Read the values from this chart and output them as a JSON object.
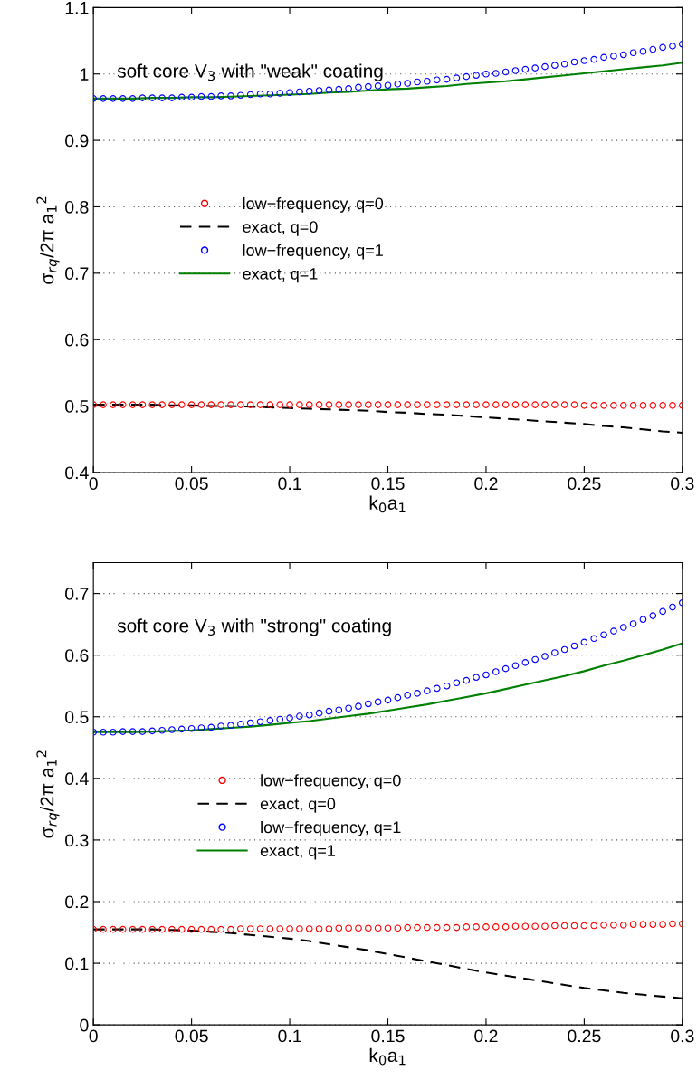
{
  "chart_data": [
    {
      "type": "scatter",
      "xlabel": "k$_{0}$a$_{1}$",
      "ylabel": "σ$_{r}$$_{q}$/2π a$_{1}$$^{2}$",
      "annotations": [
        "soft core V$_{3}$ with \"weak\" coating"
      ],
      "xlim": [
        0,
        0.3
      ],
      "ylim": [
        0.4,
        1.1
      ],
      "xticks": [
        0,
        0.05,
        0.1,
        0.15,
        0.2,
        0.25,
        0.3
      ],
      "yticks": [
        0.4,
        0.5,
        0.6,
        0.7,
        0.8,
        0.9,
        1,
        1.1
      ],
      "grid": "y",
      "legend": "center",
      "series": [
        {
          "name": "low−frequency, q=0",
          "type": "scatter",
          "marker": "circle",
          "color": "#ff0000",
          "x": [
            0,
            0.005,
            0.01,
            0.015,
            0.02,
            0.025,
            0.03,
            0.035,
            0.04,
            0.045,
            0.05,
            0.055,
            0.06,
            0.065,
            0.07,
            0.075,
            0.08,
            0.085,
            0.09,
            0.095,
            0.1,
            0.105,
            0.11,
            0.115,
            0.12,
            0.125,
            0.13,
            0.135,
            0.14,
            0.145,
            0.15,
            0.155,
            0.16,
            0.165,
            0.17,
            0.175,
            0.18,
            0.185,
            0.19,
            0.195,
            0.2,
            0.205,
            0.21,
            0.215,
            0.22,
            0.225,
            0.23,
            0.235,
            0.24,
            0.245,
            0.25,
            0.255,
            0.26,
            0.265,
            0.27,
            0.275,
            0.28,
            0.285,
            0.29,
            0.295,
            0.3
          ],
          "values": [
            0.502,
            0.502,
            0.502,
            0.502,
            0.502,
            0.502,
            0.502,
            0.502,
            0.502,
            0.502,
            0.502,
            0.502,
            0.502,
            0.502,
            0.502,
            0.502,
            0.502,
            0.502,
            0.502,
            0.502,
            0.502,
            0.502,
            0.502,
            0.502,
            0.502,
            0.502,
            0.502,
            0.502,
            0.502,
            0.502,
            0.502,
            0.502,
            0.502,
            0.502,
            0.502,
            0.502,
            0.502,
            0.502,
            0.502,
            0.502,
            0.502,
            0.502,
            0.502,
            0.502,
            0.502,
            0.502,
            0.502,
            0.502,
            0.502,
            0.502,
            0.501,
            0.501,
            0.501,
            0.501,
            0.501,
            0.501,
            0.501,
            0.501,
            0.501,
            0.501,
            0.501
          ]
        },
        {
          "name": "exact, q=0",
          "type": "line",
          "line_style": "dashed",
          "color": "#000000",
          "x": [
            0,
            0.01,
            0.02,
            0.03,
            0.04,
            0.05,
            0.06,
            0.07,
            0.08,
            0.09,
            0.1,
            0.11,
            0.12,
            0.13,
            0.14,
            0.15,
            0.16,
            0.17,
            0.18,
            0.19,
            0.2,
            0.21,
            0.22,
            0.23,
            0.24,
            0.25,
            0.26,
            0.27,
            0.28,
            0.29,
            0.3
          ],
          "values": [
            0.502,
            0.502,
            0.502,
            0.502,
            0.501,
            0.501,
            0.5,
            0.5,
            0.499,
            0.498,
            0.497,
            0.496,
            0.495,
            0.494,
            0.493,
            0.491,
            0.49,
            0.488,
            0.487,
            0.485,
            0.483,
            0.481,
            0.479,
            0.477,
            0.475,
            0.473,
            0.47,
            0.468,
            0.465,
            0.462,
            0.46
          ]
        },
        {
          "name": "low−frequency, q=1",
          "type": "scatter",
          "marker": "circle",
          "color": "#0000ff",
          "x": [
            0,
            0.005,
            0.01,
            0.015,
            0.02,
            0.025,
            0.03,
            0.035,
            0.04,
            0.045,
            0.05,
            0.055,
            0.06,
            0.065,
            0.07,
            0.075,
            0.08,
            0.085,
            0.09,
            0.095,
            0.1,
            0.105,
            0.11,
            0.115,
            0.12,
            0.125,
            0.13,
            0.135,
            0.14,
            0.145,
            0.15,
            0.155,
            0.16,
            0.165,
            0.17,
            0.175,
            0.18,
            0.185,
            0.19,
            0.195,
            0.2,
            0.205,
            0.21,
            0.215,
            0.22,
            0.225,
            0.23,
            0.235,
            0.24,
            0.245,
            0.25,
            0.255,
            0.26,
            0.265,
            0.27,
            0.275,
            0.28,
            0.285,
            0.29,
            0.295,
            0.3
          ],
          "values": [
            0.963,
            0.963,
            0.963,
            0.963,
            0.963,
            0.964,
            0.964,
            0.964,
            0.964,
            0.965,
            0.965,
            0.966,
            0.966,
            0.967,
            0.967,
            0.968,
            0.969,
            0.97,
            0.97,
            0.971,
            0.972,
            0.973,
            0.974,
            0.975,
            0.976,
            0.977,
            0.978,
            0.98,
            0.981,
            0.982,
            0.983,
            0.985,
            0.986,
            0.988,
            0.989,
            0.991,
            0.992,
            0.994,
            0.996,
            0.998,
            1.0,
            1.001,
            1.003,
            1.005,
            1.007,
            1.009,
            1.011,
            1.013,
            1.015,
            1.018,
            1.02,
            1.022,
            1.025,
            1.027,
            1.029,
            1.032,
            1.034,
            1.037,
            1.04,
            1.042,
            1.045
          ]
        },
        {
          "name": "exact, q=1",
          "type": "line",
          "line_style": "solid",
          "color": "#008000",
          "x": [
            0,
            0.01,
            0.02,
            0.03,
            0.04,
            0.05,
            0.06,
            0.07,
            0.08,
            0.09,
            0.1,
            0.11,
            0.12,
            0.13,
            0.14,
            0.15,
            0.16,
            0.17,
            0.18,
            0.19,
            0.2,
            0.21,
            0.22,
            0.23,
            0.24,
            0.25,
            0.26,
            0.27,
            0.28,
            0.29,
            0.3
          ],
          "values": [
            0.963,
            0.963,
            0.963,
            0.964,
            0.964,
            0.965,
            0.965,
            0.966,
            0.967,
            0.968,
            0.969,
            0.97,
            0.972,
            0.973,
            0.975,
            0.977,
            0.978,
            0.98,
            0.982,
            0.985,
            0.987,
            0.989,
            0.992,
            0.995,
            0.998,
            1.001,
            1.004,
            1.007,
            1.01,
            1.013,
            1.017
          ]
        }
      ]
    },
    {
      "type": "scatter",
      "xlabel": "k$_{0}$a$_{1}$",
      "ylabel": "σ$_{r}$$_{q}$/2π a$_{1}$$^{2}$",
      "annotations": [
        "soft core V$_{3}$ with \"strong\" coating"
      ],
      "xlim": [
        0,
        0.3
      ],
      "ylim": [
        0,
        0.75
      ],
      "xticks": [
        0,
        0.05,
        0.1,
        0.15,
        0.2,
        0.25,
        0.3
      ],
      "yticks": [
        0,
        0.1,
        0.2,
        0.3,
        0.4,
        0.5,
        0.6,
        0.7
      ],
      "grid": "y",
      "legend": "center",
      "series": [
        {
          "name": "low−frequency, q=0",
          "type": "scatter",
          "marker": "circle",
          "color": "#ff0000",
          "x": [
            0,
            0.005,
            0.01,
            0.015,
            0.02,
            0.025,
            0.03,
            0.035,
            0.04,
            0.045,
            0.05,
            0.055,
            0.06,
            0.065,
            0.07,
            0.075,
            0.08,
            0.085,
            0.09,
            0.095,
            0.1,
            0.105,
            0.11,
            0.115,
            0.12,
            0.125,
            0.13,
            0.135,
            0.14,
            0.145,
            0.15,
            0.155,
            0.16,
            0.165,
            0.17,
            0.175,
            0.18,
            0.185,
            0.19,
            0.195,
            0.2,
            0.205,
            0.21,
            0.215,
            0.22,
            0.225,
            0.23,
            0.235,
            0.24,
            0.245,
            0.25,
            0.255,
            0.26,
            0.265,
            0.27,
            0.275,
            0.28,
            0.285,
            0.29,
            0.295,
            0.3
          ],
          "values": [
            0.155,
            0.155,
            0.155,
            0.155,
            0.155,
            0.155,
            0.155,
            0.155,
            0.155,
            0.155,
            0.155,
            0.155,
            0.155,
            0.155,
            0.155,
            0.156,
            0.156,
            0.156,
            0.156,
            0.156,
            0.156,
            0.156,
            0.156,
            0.156,
            0.156,
            0.157,
            0.157,
            0.157,
            0.157,
            0.157,
            0.157,
            0.157,
            0.158,
            0.158,
            0.158,
            0.158,
            0.158,
            0.158,
            0.159,
            0.159,
            0.159,
            0.159,
            0.159,
            0.16,
            0.16,
            0.16,
            0.16,
            0.161,
            0.161,
            0.161,
            0.161,
            0.161,
            0.162,
            0.162,
            0.162,
            0.163,
            0.163,
            0.163,
            0.163,
            0.164,
            0.164
          ]
        },
        {
          "name": "exact, q=0",
          "type": "line",
          "line_style": "dashed",
          "color": "#000000",
          "x": [
            0,
            0.01,
            0.02,
            0.03,
            0.04,
            0.05,
            0.06,
            0.07,
            0.08,
            0.09,
            0.1,
            0.11,
            0.12,
            0.13,
            0.14,
            0.15,
            0.16,
            0.17,
            0.18,
            0.19,
            0.2,
            0.21,
            0.22,
            0.23,
            0.24,
            0.25,
            0.26,
            0.27,
            0.28,
            0.29,
            0.3
          ],
          "values": [
            0.155,
            0.155,
            0.155,
            0.155,
            0.154,
            0.153,
            0.151,
            0.149,
            0.146,
            0.143,
            0.14,
            0.136,
            0.131,
            0.126,
            0.121,
            0.115,
            0.109,
            0.103,
            0.097,
            0.091,
            0.085,
            0.08,
            0.075,
            0.07,
            0.065,
            0.06,
            0.056,
            0.052,
            0.049,
            0.046,
            0.043
          ]
        },
        {
          "name": "low−frequency, q=1",
          "type": "scatter",
          "marker": "circle",
          "color": "#0000ff",
          "x": [
            0,
            0.005,
            0.01,
            0.015,
            0.02,
            0.025,
            0.03,
            0.035,
            0.04,
            0.045,
            0.05,
            0.055,
            0.06,
            0.065,
            0.07,
            0.075,
            0.08,
            0.085,
            0.09,
            0.095,
            0.1,
            0.105,
            0.11,
            0.115,
            0.12,
            0.125,
            0.13,
            0.135,
            0.14,
            0.145,
            0.15,
            0.155,
            0.16,
            0.165,
            0.17,
            0.175,
            0.18,
            0.185,
            0.19,
            0.195,
            0.2,
            0.205,
            0.21,
            0.215,
            0.22,
            0.225,
            0.23,
            0.235,
            0.24,
            0.245,
            0.25,
            0.255,
            0.26,
            0.265,
            0.27,
            0.275,
            0.28,
            0.285,
            0.29,
            0.295,
            0.3
          ],
          "values": [
            0.475,
            0.475,
            0.475,
            0.476,
            0.476,
            0.476,
            0.477,
            0.478,
            0.479,
            0.48,
            0.481,
            0.482,
            0.483,
            0.485,
            0.486,
            0.488,
            0.49,
            0.492,
            0.494,
            0.496,
            0.498,
            0.501,
            0.503,
            0.506,
            0.509,
            0.511,
            0.514,
            0.517,
            0.521,
            0.524,
            0.527,
            0.531,
            0.535,
            0.538,
            0.542,
            0.546,
            0.55,
            0.555,
            0.559,
            0.564,
            0.568,
            0.573,
            0.578,
            0.583,
            0.588,
            0.593,
            0.598,
            0.604,
            0.609,
            0.615,
            0.621,
            0.627,
            0.633,
            0.639,
            0.645,
            0.651,
            0.658,
            0.664,
            0.671,
            0.678,
            0.685
          ]
        },
        {
          "name": "exact, q=1",
          "type": "line",
          "line_style": "solid",
          "color": "#008000",
          "x": [
            0,
            0.01,
            0.02,
            0.03,
            0.04,
            0.05,
            0.06,
            0.07,
            0.08,
            0.09,
            0.1,
            0.11,
            0.12,
            0.13,
            0.14,
            0.15,
            0.16,
            0.17,
            0.18,
            0.19,
            0.2,
            0.21,
            0.22,
            0.23,
            0.24,
            0.25,
            0.26,
            0.27,
            0.28,
            0.29,
            0.3
          ],
          "values": [
            0.475,
            0.475,
            0.475,
            0.476,
            0.477,
            0.478,
            0.48,
            0.482,
            0.484,
            0.487,
            0.49,
            0.493,
            0.497,
            0.501,
            0.505,
            0.51,
            0.515,
            0.52,
            0.526,
            0.532,
            0.538,
            0.545,
            0.552,
            0.559,
            0.566,
            0.574,
            0.583,
            0.591,
            0.6,
            0.609,
            0.619
          ]
        }
      ]
    }
  ]
}
